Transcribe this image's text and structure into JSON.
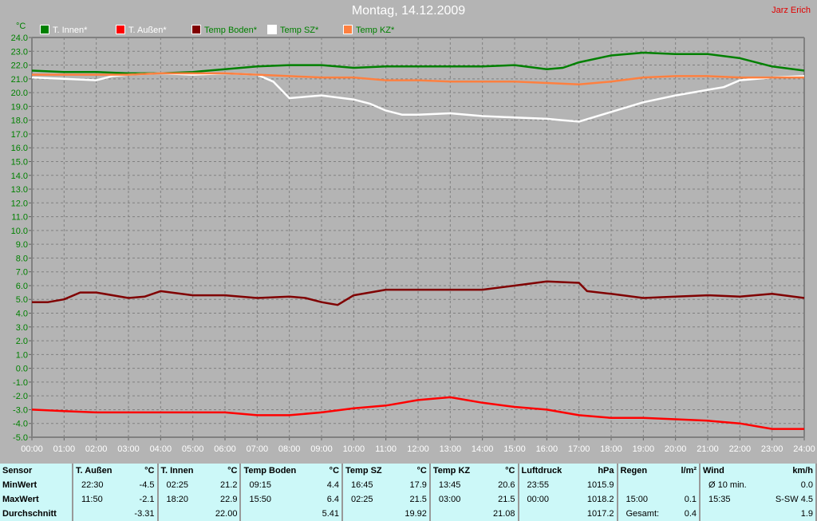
{
  "header": {
    "title": "Montag, 14.12.2009",
    "author": "Jarz Erich"
  },
  "chart_data": {
    "type": "line",
    "title": "Montag, 14.12.2009",
    "ylabel": "°C",
    "ylim": [
      -5.0,
      24.0
    ],
    "ytick_step": 1.0,
    "xlim": [
      "00:00",
      "24:00"
    ],
    "xticks": [
      "00:00",
      "01:00",
      "02:00",
      "03:00",
      "04:00",
      "05:00",
      "06:00",
      "07:00",
      "08:00",
      "09:00",
      "10:00",
      "11:00",
      "12:00",
      "13:00",
      "14:00",
      "15:00",
      "16:00",
      "17:00",
      "18:00",
      "19:00",
      "20:00",
      "21:00",
      "22:00",
      "23:00",
      "24:00"
    ],
    "grid": true,
    "legend_position": "top",
    "series": [
      {
        "name": "T. Innen*",
        "color": "#008000",
        "label_color": "#ffffff",
        "points": [
          [
            "00:00",
            21.6
          ],
          [
            "01:00",
            21.5
          ],
          [
            "02:00",
            21.5
          ],
          [
            "03:00",
            21.4
          ],
          [
            "04:00",
            21.4
          ],
          [
            "05:00",
            21.5
          ],
          [
            "06:00",
            21.7
          ],
          [
            "07:00",
            21.9
          ],
          [
            "08:00",
            22.0
          ],
          [
            "09:00",
            22.0
          ],
          [
            "10:00",
            21.8
          ],
          [
            "11:00",
            21.9
          ],
          [
            "12:00",
            21.9
          ],
          [
            "13:00",
            21.9
          ],
          [
            "14:00",
            21.9
          ],
          [
            "15:00",
            22.0
          ],
          [
            "16:00",
            21.7
          ],
          [
            "16:30",
            21.8
          ],
          [
            "17:00",
            22.2
          ],
          [
            "18:00",
            22.7
          ],
          [
            "19:00",
            22.9
          ],
          [
            "20:00",
            22.8
          ],
          [
            "21:00",
            22.8
          ],
          [
            "22:00",
            22.5
          ],
          [
            "23:00",
            21.9
          ],
          [
            "24:00",
            21.6
          ]
        ]
      },
      {
        "name": "T. Außen*",
        "color": "#ff0000",
        "label_color": "#ffffff",
        "points": [
          [
            "00:00",
            -3.0
          ],
          [
            "01:00",
            -3.1
          ],
          [
            "02:00",
            -3.2
          ],
          [
            "03:00",
            -3.2
          ],
          [
            "04:00",
            -3.2
          ],
          [
            "05:00",
            -3.2
          ],
          [
            "06:00",
            -3.2
          ],
          [
            "07:00",
            -3.4
          ],
          [
            "08:00",
            -3.4
          ],
          [
            "09:00",
            -3.2
          ],
          [
            "10:00",
            -2.9
          ],
          [
            "11:00",
            -2.7
          ],
          [
            "12:00",
            -2.3
          ],
          [
            "12:30",
            -2.2
          ],
          [
            "13:00",
            -2.1
          ],
          [
            "14:00",
            -2.5
          ],
          [
            "15:00",
            -2.8
          ],
          [
            "16:00",
            -3.0
          ],
          [
            "17:00",
            -3.4
          ],
          [
            "18:00",
            -3.6
          ],
          [
            "19:00",
            -3.6
          ],
          [
            "20:00",
            -3.7
          ],
          [
            "21:00",
            -3.8
          ],
          [
            "22:00",
            -4.0
          ],
          [
            "23:00",
            -4.4
          ],
          [
            "24:00",
            -4.4
          ]
        ]
      },
      {
        "name": "Temp Boden*",
        "color": "#800000",
        "label_color": "#008000",
        "points": [
          [
            "00:00",
            4.8
          ],
          [
            "00:30",
            4.8
          ],
          [
            "01:00",
            5.0
          ],
          [
            "01:30",
            5.5
          ],
          [
            "02:00",
            5.5
          ],
          [
            "03:00",
            5.1
          ],
          [
            "03:30",
            5.2
          ],
          [
            "04:00",
            5.6
          ],
          [
            "05:00",
            5.3
          ],
          [
            "06:00",
            5.3
          ],
          [
            "07:00",
            5.1
          ],
          [
            "08:00",
            5.2
          ],
          [
            "08:30",
            5.1
          ],
          [
            "09:00",
            4.8
          ],
          [
            "09:30",
            4.6
          ],
          [
            "10:00",
            5.3
          ],
          [
            "11:00",
            5.7
          ],
          [
            "12:00",
            5.7
          ],
          [
            "13:00",
            5.7
          ],
          [
            "14:00",
            5.7
          ],
          [
            "15:00",
            6.0
          ],
          [
            "16:00",
            6.3
          ],
          [
            "17:00",
            6.2
          ],
          [
            "17:15",
            5.6
          ],
          [
            "18:00",
            5.4
          ],
          [
            "19:00",
            5.1
          ],
          [
            "20:00",
            5.2
          ],
          [
            "21:00",
            5.3
          ],
          [
            "22:00",
            5.2
          ],
          [
            "23:00",
            5.4
          ],
          [
            "24:00",
            5.1
          ]
        ]
      },
      {
        "name": "Temp SZ*",
        "color": "#ffffff",
        "label_color": "#008000",
        "points": [
          [
            "00:00",
            21.1
          ],
          [
            "01:00",
            21.0
          ],
          [
            "02:00",
            20.9
          ],
          [
            "02:30",
            21.2
          ],
          [
            "03:00",
            21.3
          ],
          [
            "04:00",
            21.4
          ],
          [
            "05:00",
            21.3
          ],
          [
            "06:00",
            21.4
          ],
          [
            "07:00",
            21.3
          ],
          [
            "07:30",
            20.8
          ],
          [
            "08:00",
            19.6
          ],
          [
            "08:30",
            19.7
          ],
          [
            "09:00",
            19.8
          ],
          [
            "10:00",
            19.5
          ],
          [
            "10:30",
            19.2
          ],
          [
            "11:00",
            18.7
          ],
          [
            "11:30",
            18.4
          ],
          [
            "12:00",
            18.4
          ],
          [
            "13:00",
            18.5
          ],
          [
            "14:00",
            18.3
          ],
          [
            "15:00",
            18.2
          ],
          [
            "16:00",
            18.1
          ],
          [
            "16:30",
            18.0
          ],
          [
            "17:00",
            17.9
          ],
          [
            "18:00",
            18.6
          ],
          [
            "19:00",
            19.3
          ],
          [
            "20:00",
            19.8
          ],
          [
            "21:00",
            20.2
          ],
          [
            "21:30",
            20.4
          ],
          [
            "22:00",
            20.9
          ],
          [
            "23:00",
            21.1
          ],
          [
            "24:00",
            21.2
          ]
        ]
      },
      {
        "name": "Temp KZ*",
        "color": "#ff8040",
        "label_color": "#008000",
        "points": [
          [
            "00:00",
            21.3
          ],
          [
            "03:00",
            21.3
          ],
          [
            "04:00",
            21.4
          ],
          [
            "06:00",
            21.4
          ],
          [
            "07:00",
            21.3
          ],
          [
            "08:00",
            21.2
          ],
          [
            "09:00",
            21.1
          ],
          [
            "10:00",
            21.1
          ],
          [
            "11:00",
            20.9
          ],
          [
            "12:00",
            20.9
          ],
          [
            "13:00",
            20.8
          ],
          [
            "14:00",
            20.8
          ],
          [
            "15:00",
            20.8
          ],
          [
            "16:00",
            20.7
          ],
          [
            "17:00",
            20.6
          ],
          [
            "18:00",
            20.8
          ],
          [
            "19:00",
            21.1
          ],
          [
            "20:00",
            21.2
          ],
          [
            "21:00",
            21.2
          ],
          [
            "22:00",
            21.1
          ],
          [
            "23:00",
            21.1
          ],
          [
            "24:00",
            21.1
          ]
        ]
      }
    ]
  },
  "table": {
    "row_labels": [
      "Sensor",
      "MinWert",
      "MaxWert",
      "Durchschnitt"
    ],
    "columns": [
      {
        "name": "T. Außen",
        "unit": "°C",
        "min_time": "22:30",
        "min": "-4.5",
        "max_time": "11:50",
        "max": "-2.1",
        "avg_label": "",
        "avg": "-3.31"
      },
      {
        "name": "T. Innen",
        "unit": "°C",
        "min_time": "02:25",
        "min": "21.2",
        "max_time": "18:20",
        "max": "22.9",
        "avg_label": "",
        "avg": "22.00"
      },
      {
        "name": "Temp Boden",
        "unit": "°C",
        "min_time": "09:15",
        "min": "4.4",
        "max_time": "15:50",
        "max": "6.4",
        "avg_label": "",
        "avg": "5.41"
      },
      {
        "name": "Temp SZ",
        "unit": "°C",
        "min_time": "16:45",
        "min": "17.9",
        "max_time": "02:25",
        "max": "21.5",
        "avg_label": "",
        "avg": "19.92"
      },
      {
        "name": "Temp KZ",
        "unit": "°C",
        "min_time": "13:45",
        "min": "20.6",
        "max_time": "03:00",
        "max": "21.5",
        "avg_label": "",
        "avg": "21.08"
      },
      {
        "name": "Luftdruck",
        "unit": "hPa",
        "min_time": "23:55",
        "min": "1015.9",
        "max_time": "00:00",
        "max": "1018.2",
        "avg_label": "",
        "avg": "1017.2"
      },
      {
        "name": "Regen",
        "unit": "l/m²",
        "min_time": "",
        "min": "",
        "max_time": "15:00",
        "max": "0.1",
        "avg_label": "Gesamt:",
        "avg": "0.4"
      },
      {
        "name": "Wind",
        "unit": "km/h",
        "min_time": "Ø 10 min.",
        "min": "0.0",
        "max_time": "15:35",
        "max": "S-SW 4.5",
        "avg_label": "",
        "avg": "1.9"
      }
    ]
  }
}
